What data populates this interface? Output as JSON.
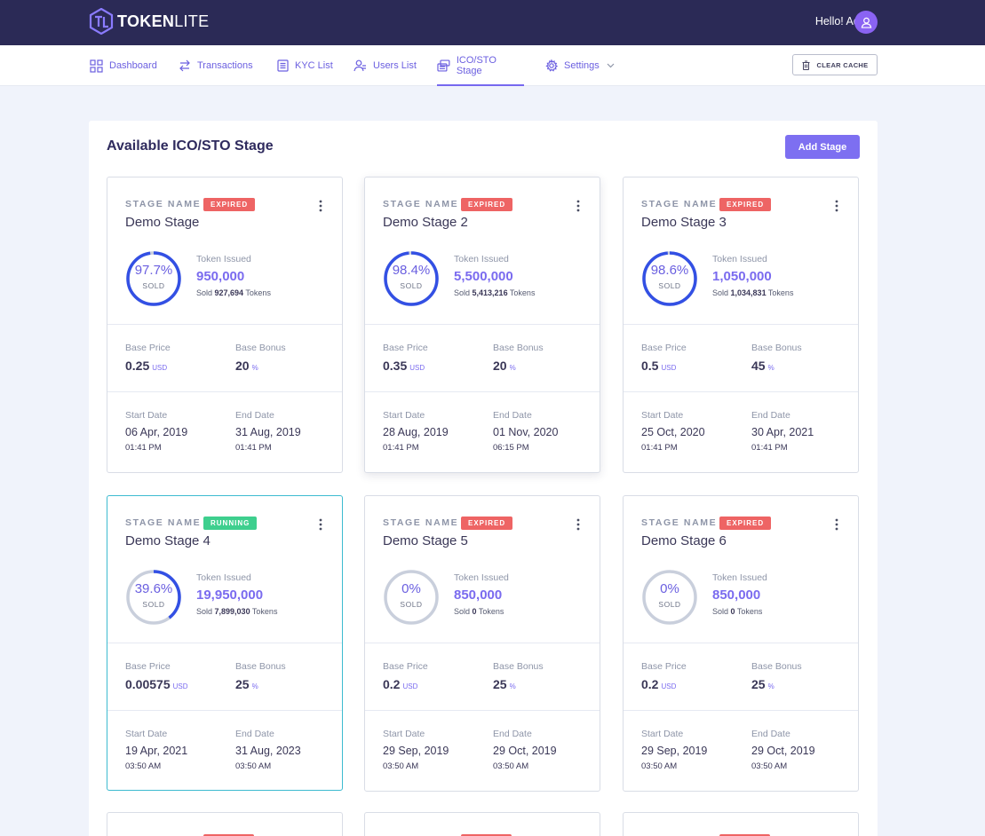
{
  "brand": {
    "name_bold": "TOKEN",
    "name_light": "LITE"
  },
  "header": {
    "greeting": "Hello! Admin"
  },
  "nav": {
    "items": [
      {
        "label": "Dashboard",
        "icon": "grid-icon"
      },
      {
        "label": "Transactions",
        "icon": "swap-arrows-icon"
      },
      {
        "label": "KYC List",
        "icon": "document-list-icon"
      },
      {
        "label": "Users List",
        "icon": "users-icon"
      },
      {
        "label": "ICO/STO Stage",
        "icon": "coins-stack-icon",
        "active": true
      },
      {
        "label": "Settings",
        "icon": "gear-icon"
      }
    ],
    "clear_cache": "CLEAR CACHE"
  },
  "panel": {
    "title": "Available ICO/STO Stage",
    "add_button": "Add Stage"
  },
  "labels": {
    "stage_name": "STAGE NAME",
    "token_issued": "Token Issued",
    "sold": "SOLD",
    "sold_prefix": "Sold",
    "tokens_suffix": "Tokens",
    "base_price": "Base Price",
    "base_bonus": "Base Bonus",
    "start_date": "Start Date",
    "end_date": "End Date",
    "usd": "USD",
    "percent": "%"
  },
  "colors": {
    "accent": "#7a6bef",
    "ring": "#3350e4",
    "ring_track": "#c9cfdc",
    "expired": "#ee6464",
    "running": "#3ecf8e",
    "header_bg": "#2b2a56"
  },
  "stages": [
    {
      "name": "Demo Stage",
      "status": "EXPIRED",
      "percent_label": "97.7%",
      "percent": 97.7,
      "token_issued": "950,000",
      "sold": "927,694",
      "base_price": "0.25",
      "base_bonus": "20",
      "start_date": "06 Apr, 2019",
      "start_time": "01:41 PM",
      "end_date": "31 Aug, 2019",
      "end_time": "01:41 PM"
    },
    {
      "name": "Demo Stage 2",
      "status": "EXPIRED",
      "percent_label": "98.4%",
      "percent": 98.4,
      "token_issued": "5,500,000",
      "sold": "5,413,216",
      "base_price": "0.35",
      "base_bonus": "20",
      "start_date": "28 Aug, 2019",
      "start_time": "01:41 PM",
      "end_date": "01 Nov, 2020",
      "end_time": "06:15 PM"
    },
    {
      "name": "Demo Stage 3",
      "status": "EXPIRED",
      "percent_label": "98.6%",
      "percent": 98.6,
      "token_issued": "1,050,000",
      "sold": "1,034,831",
      "base_price": "0.5",
      "base_bonus": "45",
      "start_date": "25 Oct, 2020",
      "start_time": "01:41 PM",
      "end_date": "30 Apr, 2021",
      "end_time": "01:41 PM"
    },
    {
      "name": "Demo Stage 4",
      "status": "RUNNING",
      "percent_label": "39.6%",
      "percent": 39.6,
      "token_issued": "19,950,000",
      "sold": "7,899,030",
      "base_price": "0.00575",
      "base_bonus": "25",
      "start_date": "19 Apr, 2021",
      "start_time": "03:50 AM",
      "end_date": "31 Aug, 2023",
      "end_time": "03:50 AM"
    },
    {
      "name": "Demo Stage 5",
      "status": "EXPIRED",
      "percent_label": "0%",
      "percent": 0,
      "token_issued": "850,000",
      "sold": "0",
      "base_price": "0.2",
      "base_bonus": "25",
      "start_date": "29 Sep, 2019",
      "start_time": "03:50 AM",
      "end_date": "29 Oct, 2019",
      "end_time": "03:50 AM"
    },
    {
      "name": "Demo Stage 6",
      "status": "EXPIRED",
      "percent_label": "0%",
      "percent": 0,
      "token_issued": "850,000",
      "sold": "0",
      "base_price": "0.2",
      "base_bonus": "25",
      "start_date": "29 Sep, 2019",
      "start_time": "03:50 AM",
      "end_date": "29 Oct, 2019",
      "end_time": "03:50 AM"
    }
  ]
}
